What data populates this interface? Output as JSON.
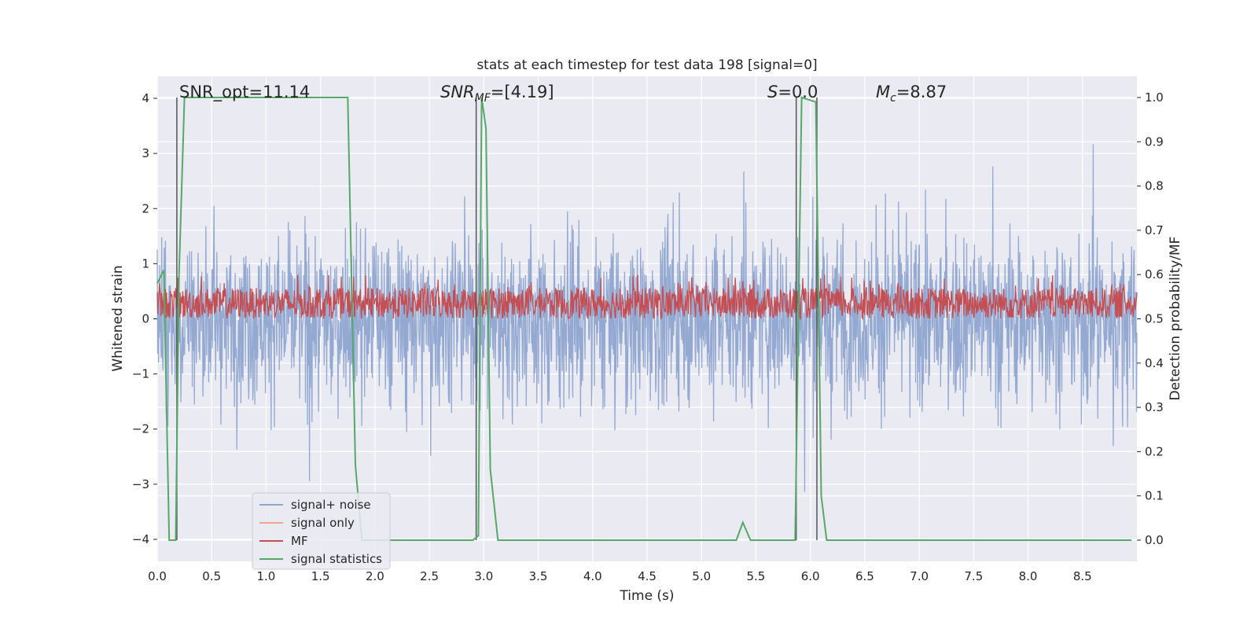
{
  "chart_data": {
    "type": "line",
    "title": "stats at each timestep for test data 198 [signal=0]",
    "xlabel": "Time (s)",
    "ylabel": "Whitened strain",
    "y2label": "Detection probability/MF",
    "xlim": [
      0,
      9.0
    ],
    "ylim": [
      -4.4,
      4.4
    ],
    "y2lim": [
      -0.048,
      1.048
    ],
    "xticks": [
      "0.0",
      "0.5",
      "1.0",
      "1.5",
      "2.0",
      "2.5",
      "3.0",
      "3.5",
      "4.0",
      "4.5",
      "5.0",
      "5.5",
      "6.0",
      "6.5",
      "7.0",
      "7.5",
      "8.0",
      "8.5"
    ],
    "yticks": [
      "4",
      "3",
      "2",
      "1",
      "0",
      "−1",
      "−2",
      "−3",
      "−4"
    ],
    "y2ticks": [
      "1.0",
      "0.9",
      "0.8",
      "0.7",
      "0.6",
      "0.5",
      "0.4",
      "0.3",
      "0.2",
      "0.1",
      "0.0"
    ],
    "grid": true,
    "legend_position": "lower-left",
    "colors": {
      "signal_noise": "#8fa5cf",
      "signal_only": "#eea889",
      "mf": "#c44e52",
      "signal_statistics": "#55a868",
      "vlines": "#555555",
      "background": "#eaeaf2"
    },
    "annotations": [
      {
        "text": "SNR_opt=11.14"
      },
      {
        "text": "SNR_MF=[4.19]"
      },
      {
        "text": "S=0.0"
      },
      {
        "text": "M_c=8.87"
      }
    ],
    "series": [
      {
        "name": "signal+ noise",
        "axis": "left",
        "note_shape": "dense noise band",
        "amplitude_envelope": 3.0
      },
      {
        "name": "signal only",
        "axis": "left",
        "values": []
      },
      {
        "name": "MF",
        "axis": "left",
        "note_shape": "dense noise band",
        "y_range": [
          0,
          0.9
        ]
      },
      {
        "name": "signal statistics",
        "axis": "right",
        "x": [
          0.0,
          0.06,
          0.11,
          0.17,
          0.2,
          0.25,
          0.3,
          1.75,
          1.82,
          1.88,
          2.0,
          2.1,
          2.15,
          2.25,
          2.9,
          2.95,
          2.98,
          3.02,
          3.06,
          3.13,
          5.32,
          5.38,
          5.45,
          5.86,
          5.92,
          6.05,
          6.1,
          6.15,
          8.95
        ],
        "values": [
          0.58,
          0.61,
          0.0,
          0.0,
          0.6,
          1.0,
          1.0,
          1.0,
          0.17,
          0.0,
          0.0,
          0.0,
          0.0,
          0.0,
          0.0,
          0.01,
          1.0,
          0.93,
          0.16,
          0.0,
          0.0,
          0.04,
          0.0,
          0.0,
          1.0,
          0.99,
          0.1,
          0.0,
          0.0
        ]
      }
    ],
    "vlines_x": [
      0.18,
      2.93,
      5.87,
      6.06
    ],
    "legend": [
      {
        "label": "signal+ noise",
        "color_key": "signal_noise"
      },
      {
        "label": "signal only",
        "color_key": "signal_only"
      },
      {
        "label": "MF",
        "color_key": "mf"
      },
      {
        "label": "signal statistics",
        "color_key": "signal_statistics"
      }
    ]
  }
}
